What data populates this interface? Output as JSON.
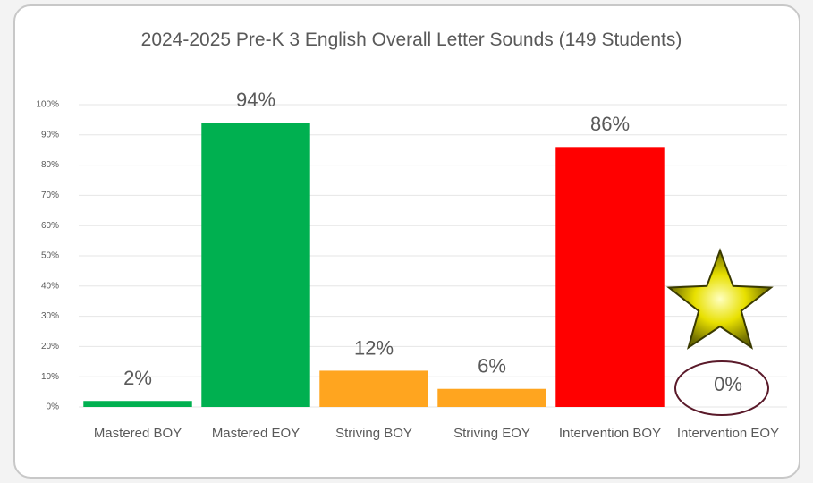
{
  "chart_data": {
    "type": "bar",
    "title": "2024-2025 Pre-K 3 English Overall Letter Sounds (149 Students)",
    "categories": [
      "Mastered BOY",
      "Mastered EOY",
      "Striving BOY",
      "Striving EOY",
      "Intervention BOY",
      "Intervention EOY"
    ],
    "values": [
      2,
      94,
      12,
      6,
      86,
      0
    ],
    "value_labels": [
      "2%",
      "94%",
      "12%",
      "6%",
      "86%",
      "0%"
    ],
    "colors": [
      "#00b050",
      "#00b050",
      "#ffa51f",
      "#ffa51f",
      "#ff0000",
      "#ff0000"
    ],
    "ylim": [
      0,
      100
    ],
    "yticks": [
      {
        "value": 0,
        "label": "0%"
      },
      {
        "value": 10,
        "label": "10%"
      },
      {
        "value": 20,
        "label": "20%"
      },
      {
        "value": 30,
        "label": "30%"
      },
      {
        "value": 40,
        "label": "40%"
      },
      {
        "value": 50,
        "label": "50%"
      },
      {
        "value": 60,
        "label": "60%"
      },
      {
        "value": 70,
        "label": "70%"
      },
      {
        "value": 80,
        "label": "80%"
      },
      {
        "value": 90,
        "label": "90%"
      },
      {
        "value": 100,
        "label": "100%"
      }
    ],
    "grid": true
  }
}
